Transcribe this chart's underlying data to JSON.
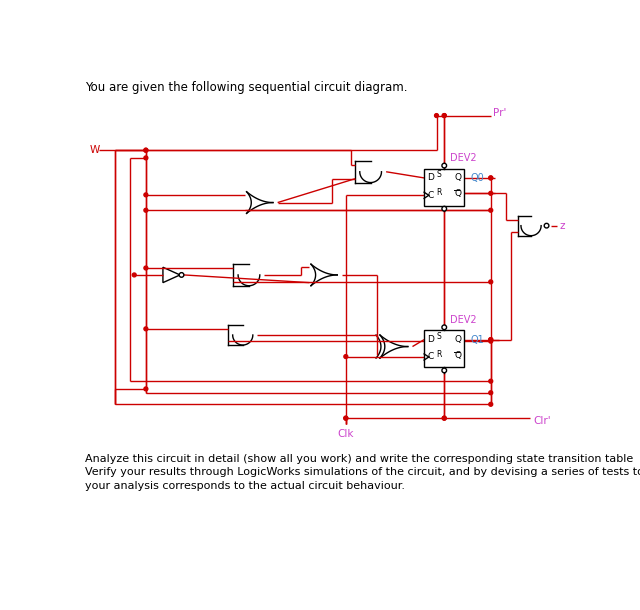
{
  "title": "You are given the following sequential circuit diagram.",
  "bottom1": "Analyze this circuit in detail (show all you work) and write the corresponding state transition table",
  "bottom2": "Verify your results through LogicWorks simulations of the circuit, and by devising a series of tests to ensure that",
  "bottom3": "your analysis corresponds to the actual circuit behaviour.",
  "wire_color": "#cc0000",
  "gate_color": "#000000",
  "magenta": "#cc44cc",
  "blue": "#4488cc",
  "bg": "#ffffff"
}
